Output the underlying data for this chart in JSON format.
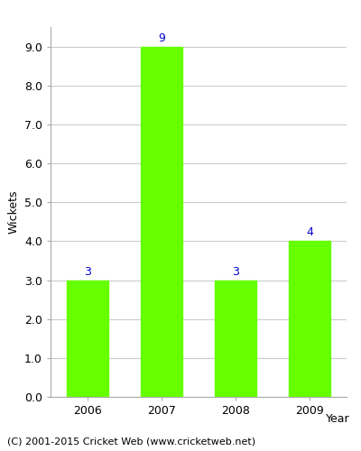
{
  "years": [
    "2006",
    "2007",
    "2008",
    "2009"
  ],
  "values": [
    3,
    9,
    3,
    4
  ],
  "bar_color": "#66ff00",
  "bar_edge_color": "#66ff00",
  "label_color": "#0000cc",
  "label_fontsize": 9,
  "ylabel": "Wickets",
  "xlabel": "Year",
  "ylim": [
    0,
    9.5
  ],
  "yticks": [
    0.0,
    1.0,
    2.0,
    3.0,
    4.0,
    5.0,
    6.0,
    7.0,
    8.0,
    9.0
  ],
  "grid_color": "#cccccc",
  "background_color": "#ffffff",
  "footer_text": "(C) 2001-2015 Cricket Web (www.cricketweb.net)",
  "footer_fontsize": 8,
  "axis_label_fontsize": 9,
  "tick_fontsize": 9,
  "spine_color": "#aaaaaa"
}
